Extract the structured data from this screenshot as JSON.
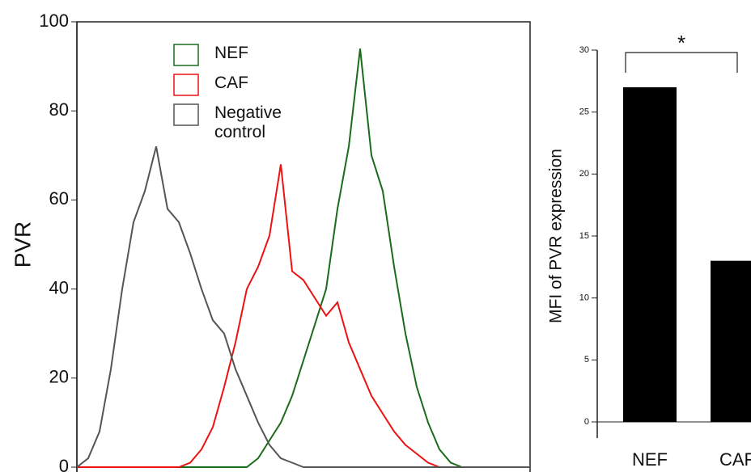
{
  "chart_data": [
    {
      "type": "line",
      "ylabel": "PVR",
      "x": [
        0,
        2.5,
        5,
        7.5,
        10,
        12.5,
        15,
        17.5,
        20,
        22.5,
        25,
        27.5,
        30,
        32.5,
        35,
        37.5,
        40,
        42.5,
        45,
        47.5,
        50,
        52.5,
        55,
        57.5,
        60,
        62.5,
        65,
        67.5,
        70,
        72.5,
        75,
        77.5,
        80,
        82.5,
        85,
        87.5,
        90,
        92.5,
        95,
        97.5,
        100
      ],
      "xlim": [
        0,
        100
      ],
      "ylim": [
        0,
        100
      ],
      "yticks": [
        0,
        20,
        40,
        60,
        80,
        100
      ],
      "series": [
        {
          "name": "NEF",
          "color": "#1a6b1a",
          "values": [
            0,
            0,
            0,
            0,
            0,
            0,
            0,
            0,
            0,
            0,
            0,
            0,
            0,
            0,
            0,
            0,
            2,
            6,
            10,
            16,
            24,
            32,
            40,
            58,
            72,
            94,
            70,
            62,
            45,
            30,
            18,
            10,
            4,
            1,
            0,
            0,
            0,
            0,
            0,
            0,
            0
          ]
        },
        {
          "name": "CAF",
          "color": "#ee1111",
          "values": [
            0,
            0,
            0,
            0,
            0,
            0,
            0,
            0,
            0,
            0,
            1,
            4,
            9,
            18,
            28,
            40,
            45,
            52,
            68,
            44,
            42,
            38,
            34,
            37,
            28,
            22,
            16,
            12,
            8,
            5,
            3,
            1,
            0,
            0,
            0,
            0,
            0,
            0,
            0,
            0,
            0
          ]
        },
        {
          "name": "Negative control",
          "color": "#555555",
          "values": [
            0,
            2,
            8,
            22,
            40,
            55,
            62,
            72,
            58,
            55,
            48,
            40,
            33,
            30,
            22,
            16,
            10,
            5,
            2,
            1,
            0,
            0,
            0,
            0,
            0,
            0,
            0,
            0,
            0,
            0,
            0,
            0,
            0,
            0,
            0,
            0,
            0,
            0,
            0,
            0,
            0
          ]
        }
      ]
    },
    {
      "type": "bar",
      "ylabel": "MFI of PVR expression",
      "categories": [
        "NEF",
        "CAF"
      ],
      "values": [
        27,
        13
      ],
      "color": "#000000",
      "ylim": [
        0,
        30
      ],
      "yticks": [
        0,
        5,
        10,
        15,
        20,
        25,
        30
      ],
      "annotation": "*"
    }
  ]
}
